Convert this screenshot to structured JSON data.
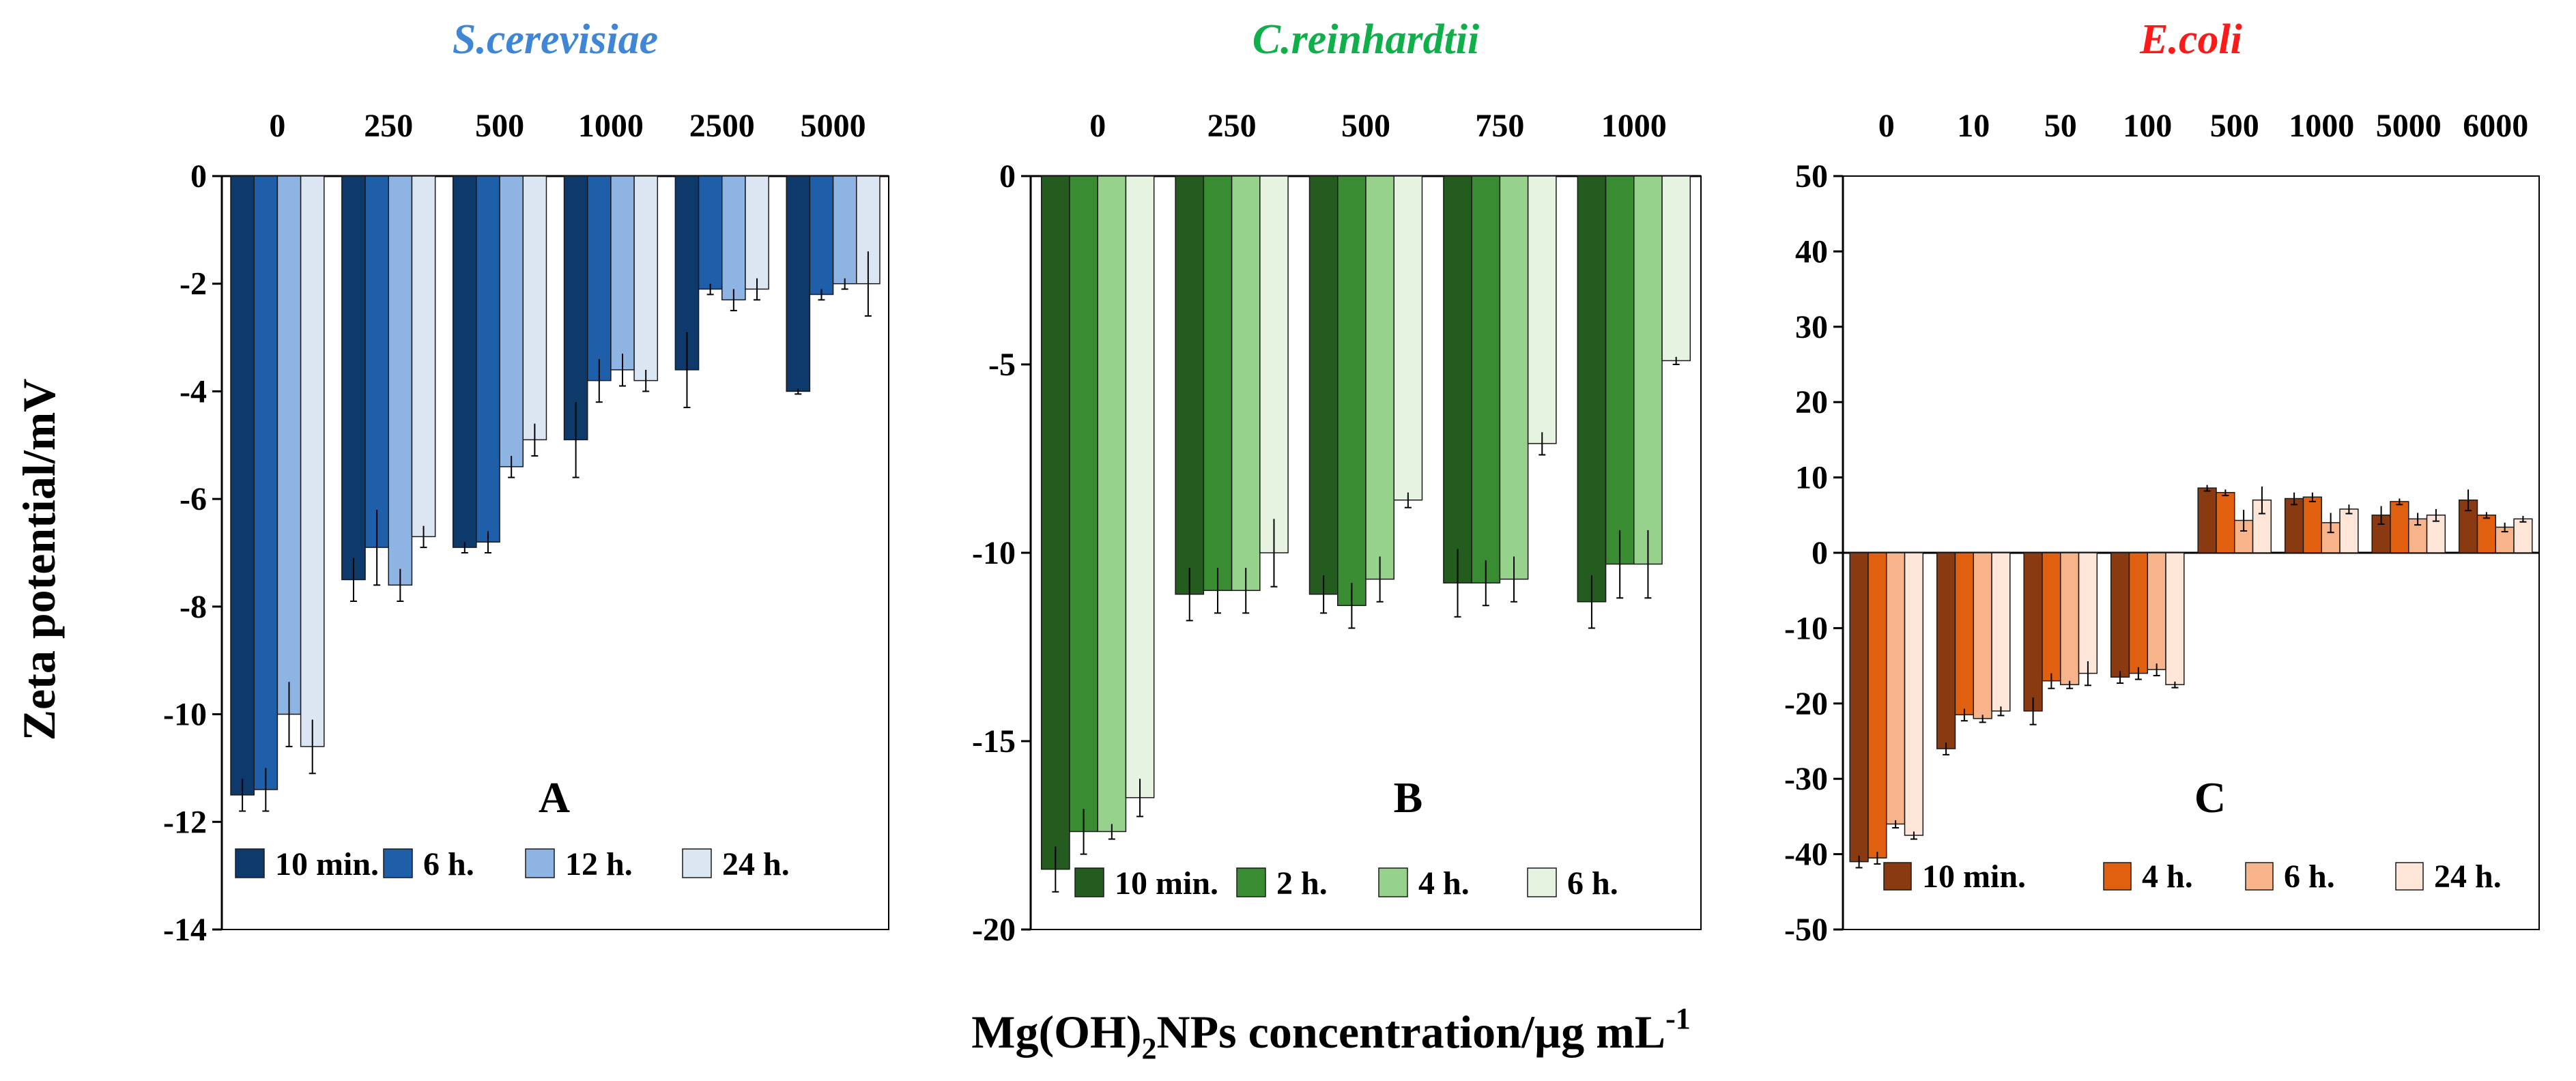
{
  "figure": {
    "ylabel": "Zeta potential/mV",
    "xlabel": "Mg(OH)",
    "xlabel_sub": "2",
    "xlabel_rest": "NPs concentration/µg mL",
    "xlabel_sup": "-1"
  },
  "chart_data": [
    {
      "type": "bar",
      "title": "S.cerevisiae",
      "title_color": "#3f86d6",
      "panel_label": "A",
      "categories": [
        "0",
        "250",
        "500",
        "1000",
        "2500",
        "5000"
      ],
      "ylim": [
        -14,
        0
      ],
      "yticks": [
        0,
        -2,
        -4,
        -6,
        -8,
        -10,
        -12,
        -14
      ],
      "series": [
        {
          "name": "10 min.",
          "color": "#0d3a6b",
          "values": [
            -11.5,
            -7.5,
            -6.9,
            -4.9,
            -3.6,
            -4.0
          ],
          "errors": [
            0.3,
            0.4,
            0.1,
            0.7,
            0.7,
            0.05
          ]
        },
        {
          "name": "6 h.",
          "color": "#1f5ea8",
          "values": [
            -11.4,
            -6.9,
            -6.8,
            -3.8,
            -2.1,
            -2.2
          ],
          "errors": [
            0.4,
            0.7,
            0.2,
            0.4,
            0.1,
            0.1
          ]
        },
        {
          "name": "12 h.",
          "color": "#8eb4e3",
          "values": [
            -10.0,
            -7.6,
            -5.4,
            -3.6,
            -2.3,
            -2.0
          ],
          "errors": [
            0.6,
            0.3,
            0.2,
            0.3,
            0.2,
            0.1
          ]
        },
        {
          "name": "24 h.",
          "color": "#dce6f2",
          "values": [
            -10.6,
            -6.7,
            -4.9,
            -3.8,
            -2.1,
            -2.0
          ],
          "errors": [
            0.5,
            0.2,
            0.3,
            0.2,
            0.2,
            0.6
          ]
        }
      ]
    },
    {
      "type": "bar",
      "title": "C.reinhardtii",
      "title_color": "#0fb04a",
      "panel_label": "B",
      "categories": [
        "0",
        "250",
        "500",
        "750",
        "1000"
      ],
      "ylim": [
        -20,
        0
      ],
      "yticks": [
        0,
        -5,
        -10,
        -15,
        -20
      ],
      "series": [
        {
          "name": "10 min.",
          "color": "#245b1f",
          "values": [
            -18.4,
            -11.1,
            -11.1,
            -10.8,
            -11.3
          ],
          "errors": [
            0.6,
            0.7,
            0.5,
            0.9,
            0.7
          ]
        },
        {
          "name": "2 h.",
          "color": "#3a8c33",
          "values": [
            -17.4,
            -11.0,
            -11.4,
            -10.8,
            -10.3
          ],
          "errors": [
            0.6,
            0.6,
            0.6,
            0.6,
            0.9
          ]
        },
        {
          "name": "4 h.",
          "color": "#96d28c",
          "values": [
            -17.4,
            -11.0,
            -10.7,
            -10.7,
            -10.3
          ],
          "errors": [
            0.2,
            0.6,
            0.6,
            0.6,
            0.9
          ]
        },
        {
          "name": "6 h.",
          "color": "#e6f3e1",
          "values": [
            -16.5,
            -10.0,
            -8.6,
            -7.1,
            -4.9
          ],
          "errors": [
            0.5,
            0.9,
            0.2,
            0.3,
            0.1
          ]
        }
      ]
    },
    {
      "type": "bar",
      "title": "E.coli",
      "title_color": "#ff1a1a",
      "panel_label": "C",
      "categories": [
        "0",
        "10",
        "50",
        "100",
        "500",
        "1000",
        "5000",
        "6000"
      ],
      "ylim": [
        -50,
        50
      ],
      "yticks": [
        50,
        40,
        30,
        20,
        10,
        0,
        -10,
        -20,
        -30,
        -40,
        -50
      ],
      "series": [
        {
          "name": "10 min.",
          "color": "#8a3a10",
          "values": [
            -41,
            -26,
            -21,
            -16.5,
            8.6,
            7.2,
            5.0,
            7.0
          ],
          "errors": [
            0.8,
            0.8,
            1.8,
            0.8,
            0.4,
            0.8,
            1.2,
            1.4
          ]
        },
        {
          "name": "4 h.",
          "color": "#e06010",
          "values": [
            -40.5,
            -21.5,
            -17,
            -16,
            8.0,
            7.4,
            6.8,
            5.0
          ],
          "errors": [
            0.8,
            0.8,
            1.0,
            0.8,
            0.4,
            0.6,
            0.4,
            0.4
          ]
        },
        {
          "name": "6 h.",
          "color": "#f7b38a",
          "values": [
            -36,
            -22,
            -17.5,
            -15.5,
            4.3,
            4.0,
            4.5,
            3.4
          ],
          "errors": [
            0.5,
            0.5,
            0.5,
            0.8,
            1.4,
            1.3,
            0.8,
            0.6
          ]
        },
        {
          "name": "24 h.",
          "color": "#fde6d8",
          "values": [
            -37.5,
            -21,
            -16,
            -17.5,
            7.0,
            5.8,
            5.0,
            4.5
          ],
          "errors": [
            0.5,
            0.6,
            1.6,
            0.4,
            1.8,
            0.6,
            0.8,
            0.4
          ]
        }
      ]
    }
  ]
}
